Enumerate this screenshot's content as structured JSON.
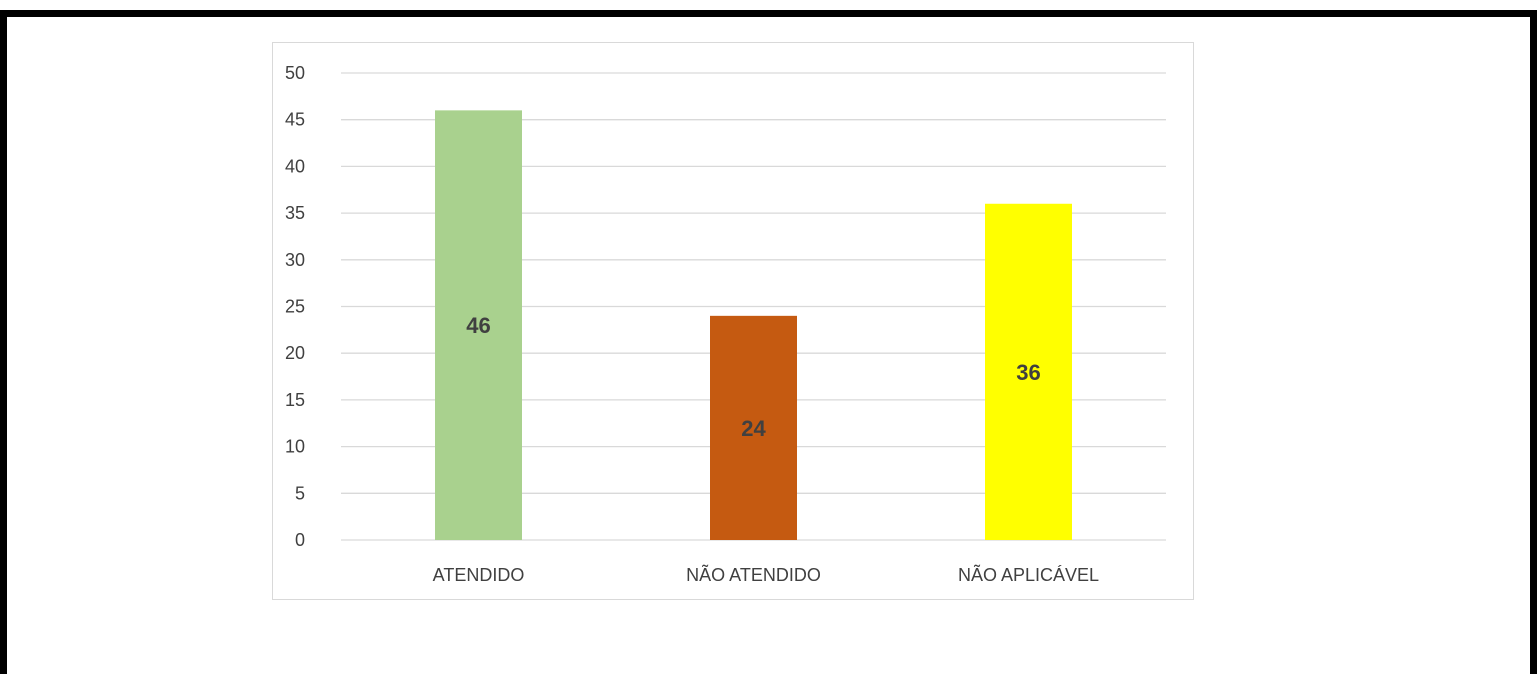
{
  "chart_data": {
    "type": "bar",
    "title": "",
    "xlabel": "",
    "ylabel": "",
    "categories": [
      "ATENDIDO",
      "NÃO ATENDIDO",
      "NÃO APLICÁVEL"
    ],
    "values": [
      46,
      24,
      36
    ],
    "data_labels": [
      "46",
      "24",
      "36"
    ],
    "bar_colors": [
      "#a9d18e",
      "#c55a11",
      "#ffff00"
    ],
    "ylim": [
      0,
      50
    ],
    "yticks": [
      0,
      5,
      10,
      15,
      20,
      25,
      30,
      35,
      40,
      45,
      50
    ],
    "grid": true,
    "legend": "none"
  }
}
